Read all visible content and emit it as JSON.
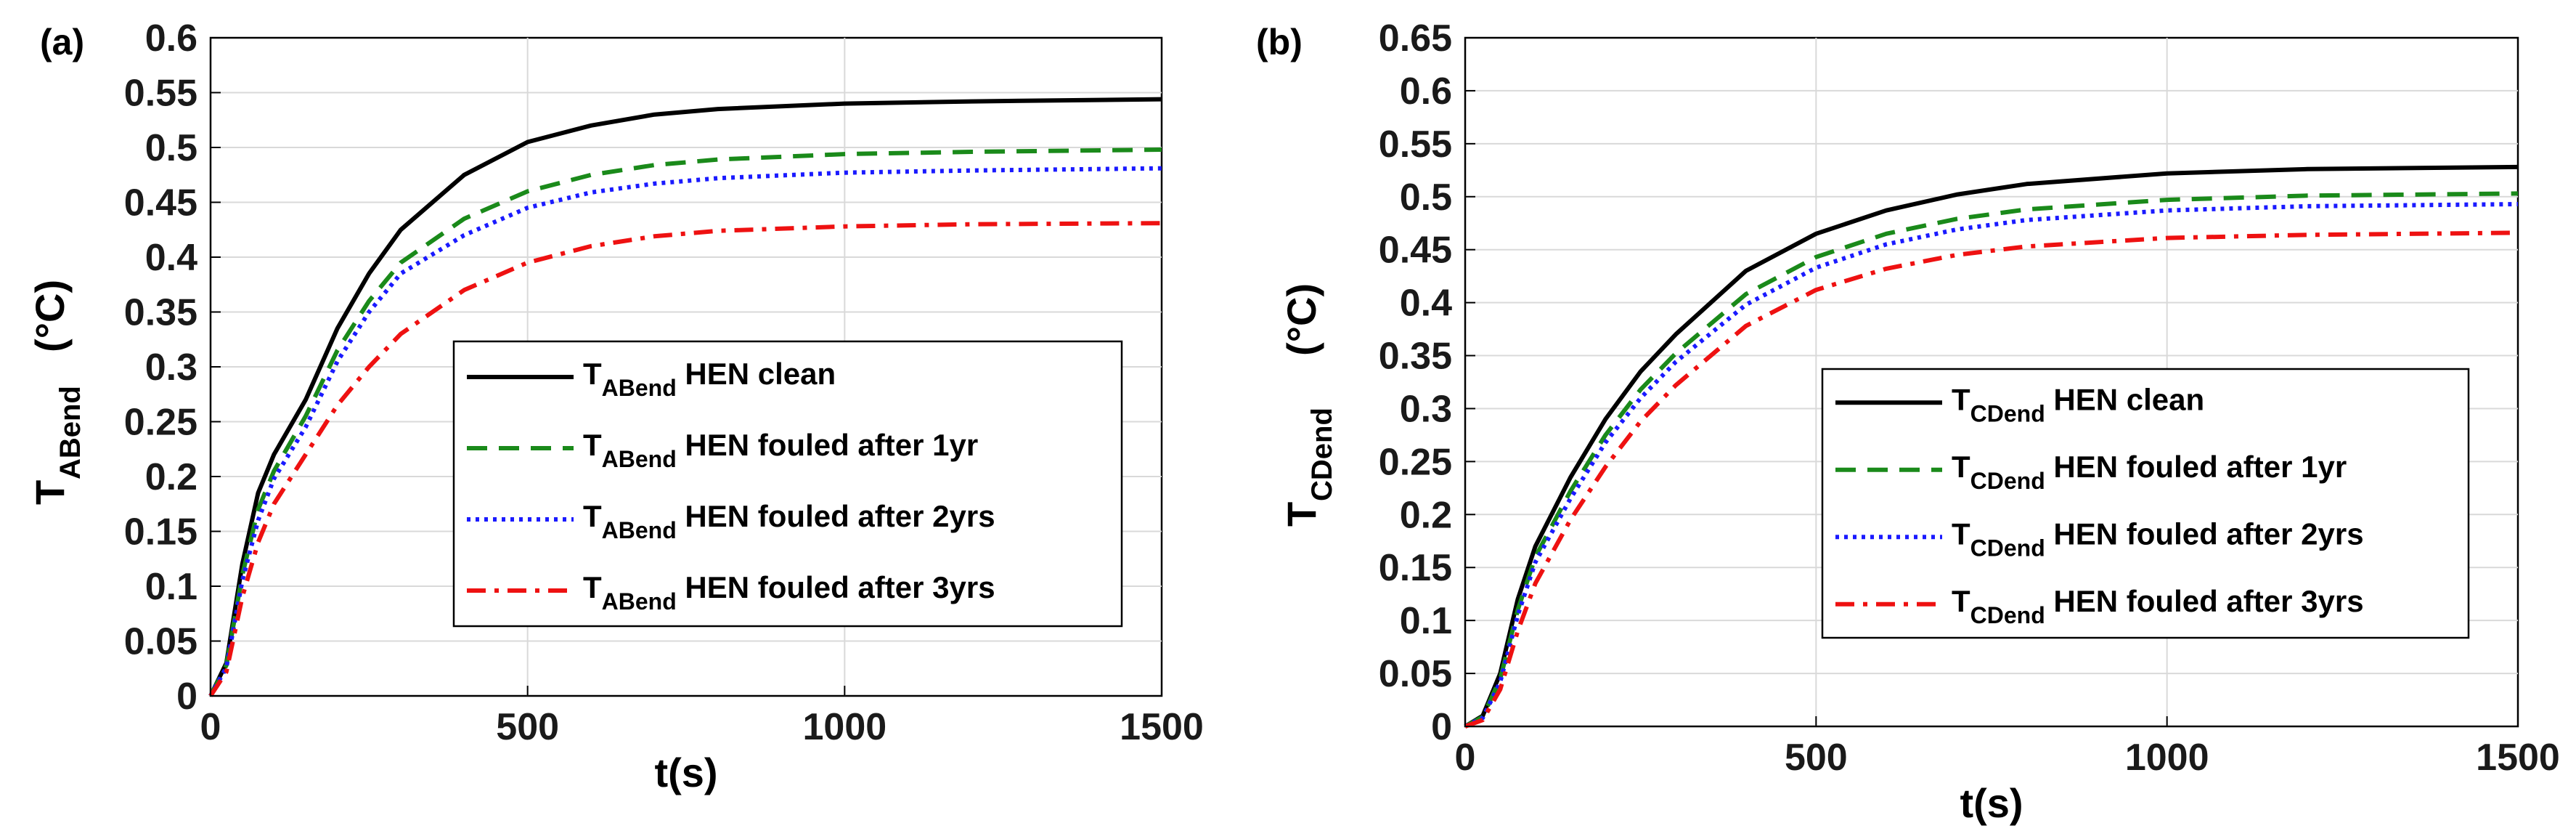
{
  "chart_data": [
    {
      "type": "line",
      "panel_label": "(a)",
      "xlabel": "t(s)",
      "ylabel": {
        "main": "T",
        "sub": "ABend",
        "units": "(°C)"
      },
      "xlim": [
        0,
        1500
      ],
      "ylim": [
        0,
        0.6
      ],
      "xticks": [
        0,
        500,
        1000,
        1500
      ],
      "yticks": [
        0,
        0.05,
        0.1,
        0.15,
        0.2,
        0.25,
        0.3,
        0.35,
        0.4,
        0.45,
        0.5,
        0.55,
        0.6
      ],
      "yticklabels": [
        "0",
        "0.05",
        "0.1",
        "0.15",
        "0.2",
        "0.25",
        "0.3",
        "0.35",
        "0.4",
        "0.45",
        "0.5",
        "0.55",
        "0.6"
      ],
      "grid": true,
      "legend_position": "center-right",
      "series": [
        {
          "name": "T_ABend HEN clean",
          "legend_main": "T",
          "legend_sub": "ABend",
          "legend_rest": " HEN clean",
          "color": "#000000",
          "dash": "solid",
          "x": [
            0,
            25,
            50,
            75,
            100,
            150,
            200,
            250,
            300,
            400,
            500,
            600,
            700,
            800,
            1000,
            1200,
            1500
          ],
          "y": [
            0,
            0.03,
            0.12,
            0.185,
            0.22,
            0.27,
            0.335,
            0.385,
            0.425,
            0.475,
            0.505,
            0.52,
            0.53,
            0.535,
            0.54,
            0.542,
            0.544
          ]
        },
        {
          "name": "T_ABend HEN fouled after 1yr",
          "legend_main": "T",
          "legend_sub": "ABend",
          "legend_rest": " HEN fouled after 1yr",
          "color": "#1a8a1a",
          "dash": "long",
          "x": [
            0,
            25,
            50,
            75,
            100,
            150,
            200,
            250,
            300,
            400,
            500,
            600,
            700,
            800,
            1000,
            1200,
            1500
          ],
          "y": [
            0,
            0.028,
            0.11,
            0.17,
            0.205,
            0.255,
            0.315,
            0.36,
            0.395,
            0.435,
            0.46,
            0.475,
            0.484,
            0.489,
            0.494,
            0.496,
            0.498
          ]
        },
        {
          "name": "T_ABend HEN fouled after 2yrs",
          "legend_main": "T",
          "legend_sub": "ABend",
          "legend_rest": " HEN fouled after 2yrs",
          "color": "#1a1aff",
          "dash": "dot",
          "x": [
            0,
            25,
            50,
            75,
            100,
            150,
            200,
            250,
            300,
            400,
            500,
            600,
            700,
            800,
            1000,
            1200,
            1500
          ],
          "y": [
            0,
            0.026,
            0.105,
            0.16,
            0.198,
            0.245,
            0.305,
            0.35,
            0.385,
            0.42,
            0.445,
            0.459,
            0.467,
            0.472,
            0.477,
            0.479,
            0.481
          ]
        },
        {
          "name": "T_ABend HEN fouled after 3yrs",
          "legend_main": "T",
          "legend_sub": "ABend",
          "legend_rest": " HEN fouled after 3yrs",
          "color": "#ee1111",
          "dash": "dashdot",
          "x": [
            0,
            25,
            50,
            75,
            100,
            150,
            200,
            250,
            300,
            400,
            500,
            600,
            700,
            800,
            1000,
            1200,
            1500
          ],
          "y": [
            0,
            0.022,
            0.09,
            0.14,
            0.175,
            0.22,
            0.265,
            0.3,
            0.33,
            0.37,
            0.395,
            0.41,
            0.419,
            0.424,
            0.428,
            0.43,
            0.431
          ]
        }
      ]
    },
    {
      "type": "line",
      "panel_label": "(b)",
      "xlabel": "t(s)",
      "ylabel": {
        "main": "T",
        "sub": "CDend",
        "units": "(°C)"
      },
      "xlim": [
        0,
        1500
      ],
      "ylim": [
        0,
        0.65
      ],
      "xticks": [
        0,
        500,
        1000,
        1500
      ],
      "yticks": [
        0,
        0.05,
        0.1,
        0.15,
        0.2,
        0.25,
        0.3,
        0.35,
        0.4,
        0.45,
        0.5,
        0.55,
        0.6,
        0.65
      ],
      "yticklabels": [
        "0",
        "0.05",
        "0.1",
        "0.15",
        "0.2",
        "0.25",
        "0.3",
        "0.35",
        "0.4",
        "0.45",
        "0.5",
        "0.55",
        "0.6",
        "0.65"
      ],
      "grid": true,
      "legend_position": "bottom-right",
      "series": [
        {
          "name": "T_CDend HEN clean",
          "legend_main": "T",
          "legend_sub": "CDend",
          "legend_rest": " HEN clean",
          "color": "#000000",
          "dash": "solid",
          "x": [
            0,
            25,
            50,
            75,
            100,
            150,
            200,
            250,
            300,
            400,
            500,
            600,
            700,
            800,
            1000,
            1200,
            1500
          ],
          "y": [
            0,
            0.01,
            0.05,
            0.12,
            0.17,
            0.235,
            0.29,
            0.335,
            0.37,
            0.43,
            0.465,
            0.487,
            0.502,
            0.512,
            0.522,
            0.526,
            0.528
          ]
        },
        {
          "name": "T_CDend HEN fouled after 1yr",
          "legend_main": "T",
          "legend_sub": "CDend",
          "legend_rest": " HEN fouled after 1yr",
          "color": "#1a8a1a",
          "dash": "long",
          "x": [
            0,
            25,
            50,
            75,
            100,
            150,
            200,
            250,
            300,
            400,
            500,
            600,
            700,
            800,
            1000,
            1200,
            1500
          ],
          "y": [
            0,
            0.009,
            0.045,
            0.11,
            0.16,
            0.222,
            0.275,
            0.318,
            0.352,
            0.408,
            0.443,
            0.465,
            0.479,
            0.488,
            0.497,
            0.501,
            0.503
          ]
        },
        {
          "name": "T_CDend HEN fouled after 2yrs",
          "legend_main": "T",
          "legend_sub": "CDend",
          "legend_rest": " HEN fouled after 2yrs",
          "color": "#1a1aff",
          "dash": "dot",
          "x": [
            0,
            25,
            50,
            75,
            100,
            150,
            200,
            250,
            300,
            400,
            500,
            600,
            700,
            800,
            1000,
            1200,
            1500
          ],
          "y": [
            0,
            0.008,
            0.042,
            0.105,
            0.155,
            0.215,
            0.268,
            0.31,
            0.344,
            0.398,
            0.433,
            0.455,
            0.469,
            0.478,
            0.487,
            0.491,
            0.493
          ]
        },
        {
          "name": "T_CDend HEN fouled after 3yrs",
          "legend_main": "T",
          "legend_sub": "CDend",
          "legend_rest": " HEN fouled after 3yrs",
          "color": "#ee1111",
          "dash": "dashdot",
          "x": [
            0,
            25,
            50,
            75,
            100,
            150,
            200,
            250,
            300,
            400,
            500,
            600,
            700,
            800,
            1000,
            1200,
            1500
          ],
          "y": [
            0,
            0.006,
            0.035,
            0.09,
            0.135,
            0.195,
            0.245,
            0.288,
            0.322,
            0.378,
            0.412,
            0.432,
            0.445,
            0.453,
            0.461,
            0.464,
            0.466
          ]
        }
      ]
    }
  ]
}
